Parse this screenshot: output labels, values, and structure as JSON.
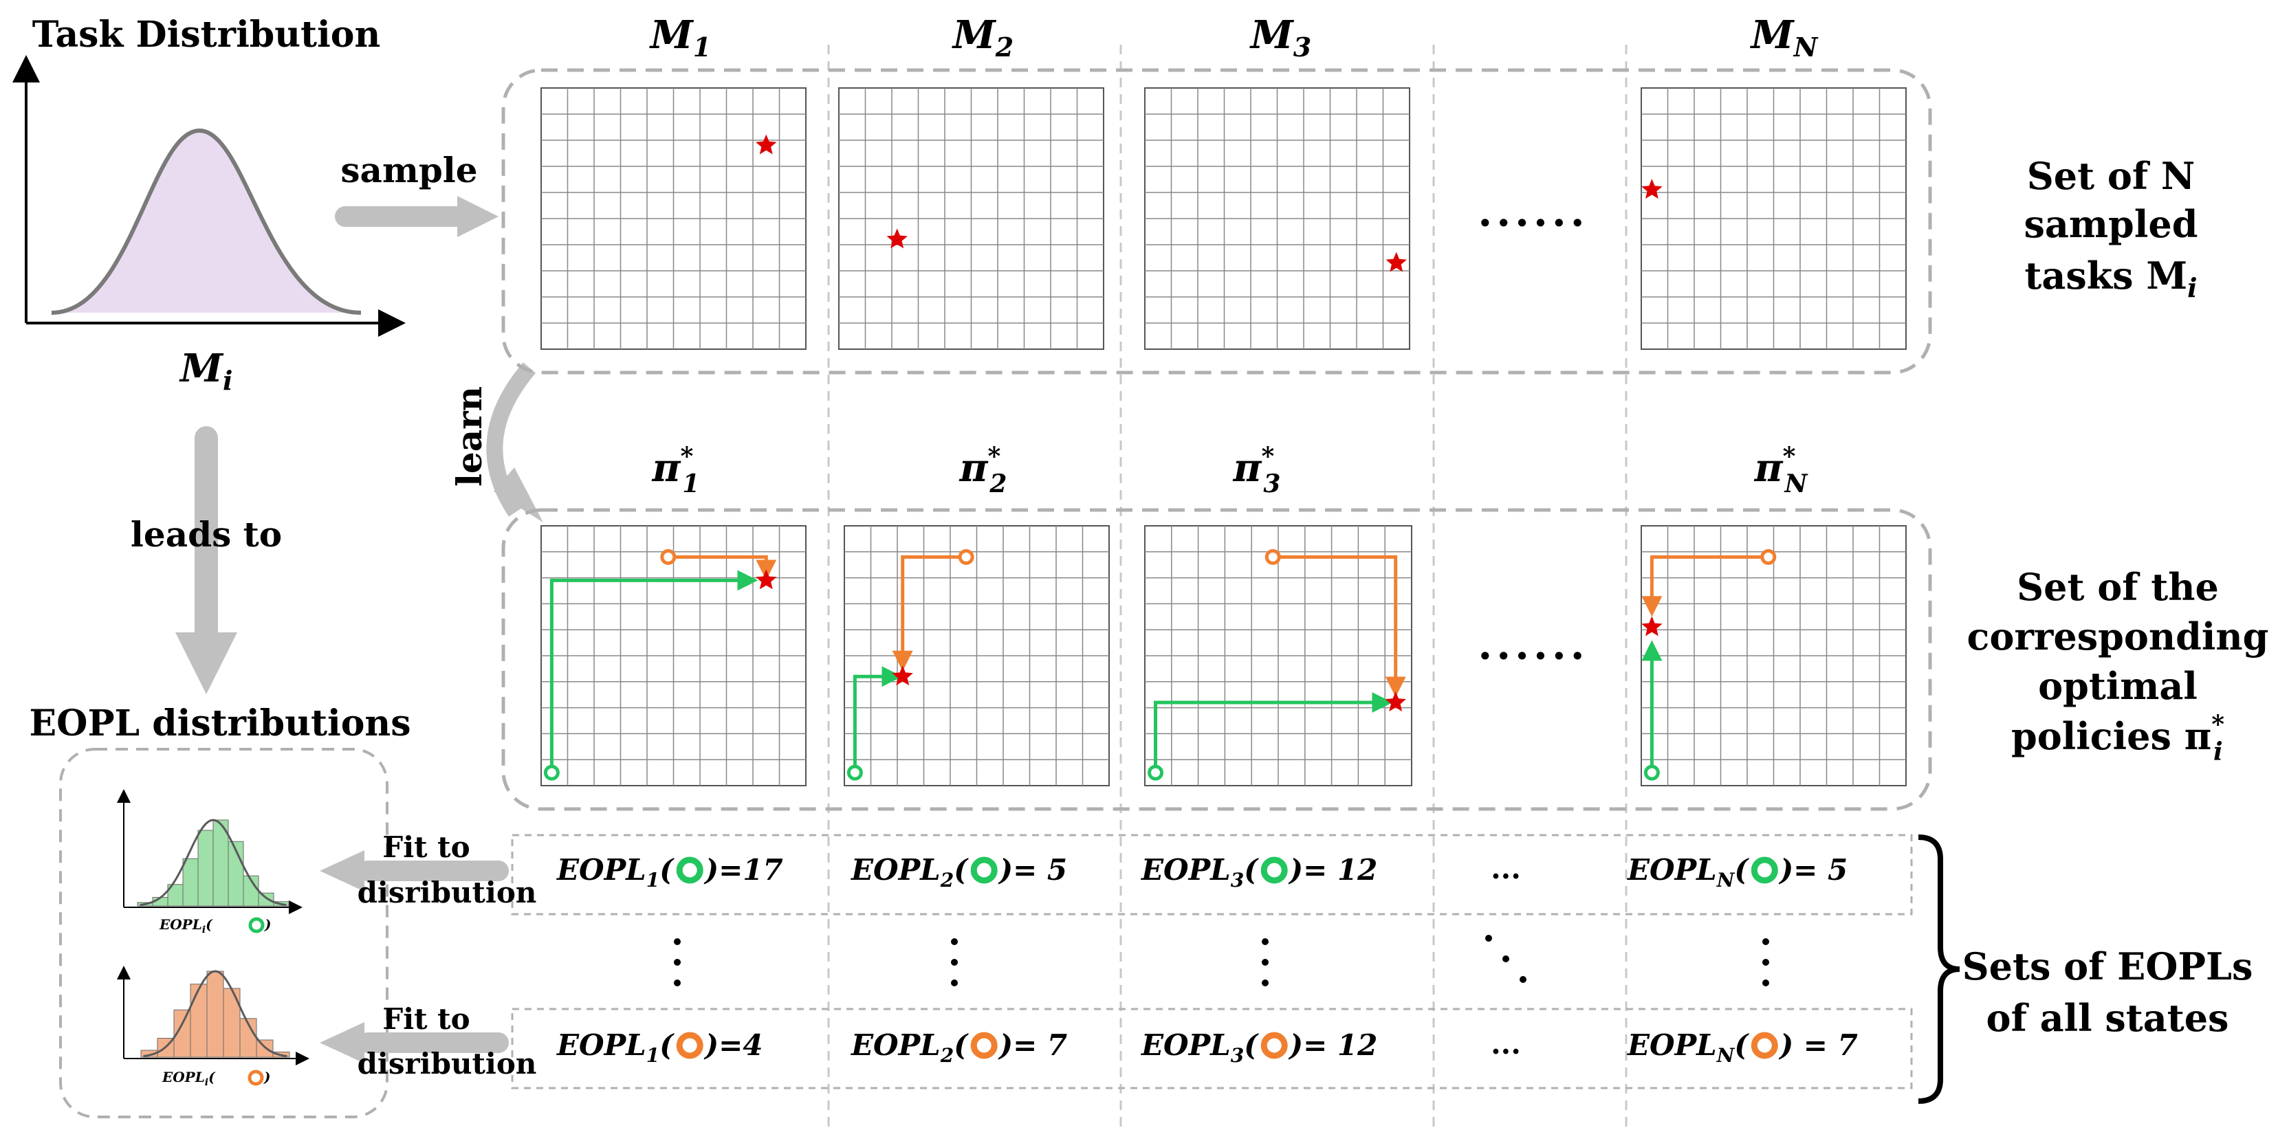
{
  "left_panel": {
    "title": "Task Distribution",
    "axis_label": "M",
    "axis_sub": "i",
    "leads_to": "leads to",
    "eopl_title": "EOPL distributions",
    "hist_axis_label": "EOPL",
    "hist_axis_sub": "i",
    "hist_ellipsis": "⋮"
  },
  "arrows": {
    "sample": "sample",
    "learn": "learn",
    "fit_line1": "Fit to",
    "fit_line2": "disribution"
  },
  "tasks": [
    {
      "label": "M",
      "sub": "1",
      "policy": "π",
      "policy_sub": "1",
      "policy_sup": "*",
      "eopl_green_name": "EOPL",
      "eopl_green_sub": "1",
      "eopl_green_val": "=17",
      "eopl_orange_name": "EOPL",
      "eopl_orange_sub": "1",
      "eopl_orange_val": "=4"
    },
    {
      "label": "M",
      "sub": "2",
      "policy": "π",
      "policy_sub": "2",
      "policy_sup": "*",
      "eopl_green_name": "EOPL",
      "eopl_green_sub": "2",
      "eopl_green_val": "= 5",
      "eopl_orange_name": "EOPL",
      "eopl_orange_sub": "2",
      "eopl_orange_val": "= 7"
    },
    {
      "label": "M",
      "sub": "3",
      "policy": "π",
      "policy_sub": "3",
      "policy_sup": "*",
      "eopl_green_name": "EOPL",
      "eopl_green_sub": "3",
      "eopl_green_val": "= 12",
      "eopl_orange_name": "EOPL",
      "eopl_orange_sub": "3",
      "eopl_orange_val": "= 12"
    },
    {
      "label": "M",
      "sub": "N",
      "policy": "π",
      "policy_sub": "N",
      "policy_sup": "*",
      "eopl_green_name": "EOPL",
      "eopl_green_sub": "N",
      "eopl_green_val": "= 5",
      "eopl_orange_name": "EOPL",
      "eopl_orange_sub": "N",
      "eopl_orange_val": ") = 7"
    }
  ],
  "ellipsis_dots": "······",
  "eopl_ellipsis": "...",
  "right_labels": {
    "tasks": [
      "Set of N",
      "sampled",
      "tasks M"
    ],
    "tasks_sub": "i",
    "policies": [
      "Set of the",
      "corresponding",
      "optimal",
      "policies π"
    ],
    "policies_sub": "i",
    "policies_sup": "*",
    "eopls": [
      "Sets of EOPLs",
      "of all states"
    ]
  },
  "colors": {
    "green": "#22c55e",
    "orange": "#f08030",
    "star": "#e00000",
    "dashed": "#b0b0b0",
    "arrow_gray": "#c0c0c0",
    "bell_fill": "#eadcf0",
    "hist_green": "#9ee0a8",
    "hist_orange": "#f2b08a"
  }
}
